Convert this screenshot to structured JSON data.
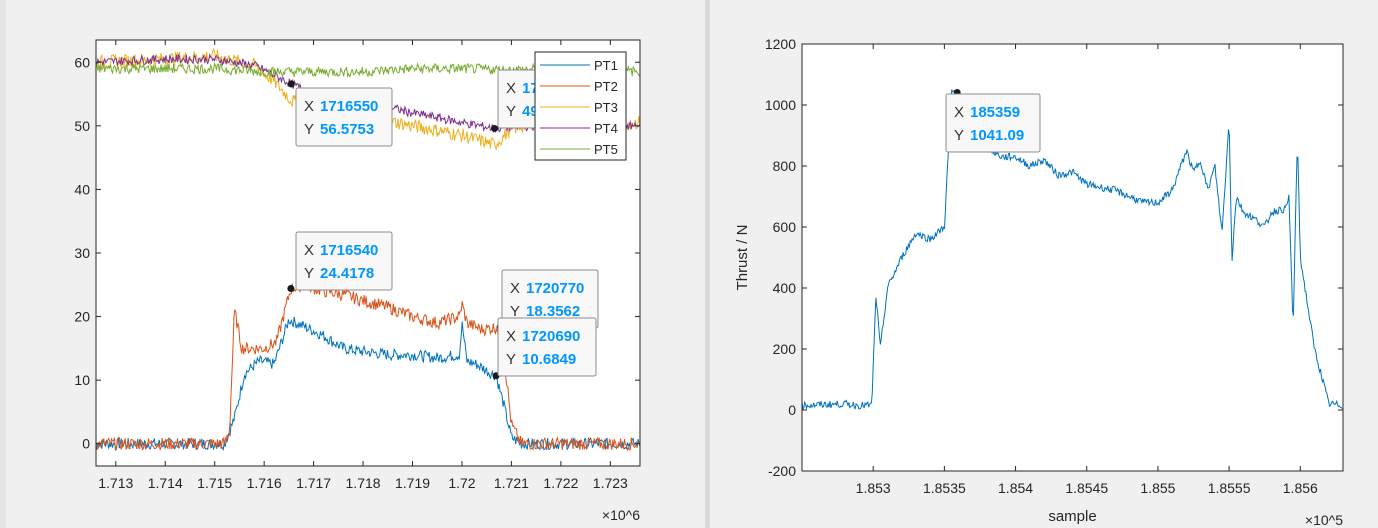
{
  "chart_data": [
    {
      "type": "line",
      "title": "",
      "xlabel": "",
      "ylabel": "",
      "x_exponent_label": "×10^6",
      "xlim": [
        1712.6,
        1723.6
      ],
      "ylim": [
        -3.5,
        63.5
      ],
      "xticks": [
        1713,
        1714,
        1715,
        1716,
        1717,
        1718,
        1719,
        1720,
        1721,
        1722,
        1723
      ],
      "xtick_labels": [
        "1.713",
        "1.714",
        "1.715",
        "1.716",
        "1.717",
        "1.718",
        "1.719",
        "1.72",
        "1.721",
        "1.722",
        "1.723"
      ],
      "yticks": [
        0,
        10,
        20,
        30,
        40,
        50,
        60
      ],
      "grid": false,
      "legend_position": "top-right",
      "series": [
        {
          "name": "PT1",
          "color": "#0072BD",
          "x": [
            1712.6,
            1715.0,
            1715.2,
            1715.4,
            1715.6,
            1715.9,
            1716.2,
            1716.5,
            1716.8,
            1717.2,
            1717.6,
            1718.0,
            1718.5,
            1719.0,
            1719.5,
            1719.95,
            1720.0,
            1720.1,
            1720.3,
            1720.6,
            1720.69,
            1720.85,
            1721.0,
            1721.2,
            1723.6
          ],
          "y": [
            0,
            0,
            0,
            4,
            11,
            13,
            12.5,
            19.5,
            18.5,
            17,
            15,
            14.5,
            14,
            14,
            13.5,
            14,
            19,
            13,
            12.5,
            11,
            10.7,
            6,
            1,
            0,
            0
          ]
        },
        {
          "name": "PT2",
          "color": "#D95319",
          "x": [
            1712.6,
            1715.0,
            1715.2,
            1715.3,
            1715.4,
            1715.55,
            1715.7,
            1716.0,
            1716.25,
            1716.54,
            1716.8,
            1717.2,
            1717.6,
            1718.0,
            1718.5,
            1719.0,
            1719.5,
            1719.95,
            1720.0,
            1720.1,
            1720.4,
            1720.77,
            1720.85,
            1721.0,
            1721.2,
            1723.6
          ],
          "y": [
            0,
            0,
            0,
            2,
            21,
            15,
            15,
            15,
            16,
            24.4,
            25,
            24,
            23.5,
            22.5,
            21.5,
            20,
            19,
            20,
            22,
            19,
            18,
            18.4,
            14,
            3,
            0,
            0
          ]
        },
        {
          "name": "PT3",
          "color": "#EDB120",
          "x": [
            1712.6,
            1714.0,
            1715.0,
            1715.8,
            1716.2,
            1716.55,
            1717.0,
            1717.5,
            1718.0,
            1718.5,
            1719.0,
            1719.5,
            1720.0,
            1720.66,
            1721.0,
            1721.5,
            1722.0,
            1722.5,
            1723.0,
            1723.6
          ],
          "y": [
            60,
            60.5,
            61,
            59.5,
            57,
            54,
            52.5,
            51.5,
            51,
            50.8,
            50,
            49.3,
            48.5,
            47,
            49.5,
            50.5,
            50.5,
            50.5,
            50.5,
            50.5
          ]
        },
        {
          "name": "PT4",
          "color": "#7E2F8E",
          "x": [
            1712.6,
            1714.0,
            1715.0,
            1715.8,
            1716.2,
            1716.55,
            1717.0,
            1717.5,
            1718.0,
            1718.5,
            1719.0,
            1719.5,
            1720.0,
            1720.66,
            1721.0,
            1721.5,
            1722.0,
            1722.5,
            1723.0,
            1723.6
          ],
          "y": [
            60,
            60.5,
            60.5,
            59.5,
            58,
            56.6,
            55,
            54,
            53.5,
            53,
            52,
            51.3,
            50.5,
            49.6,
            49.8,
            50,
            50,
            50,
            50,
            50
          ]
        },
        {
          "name": "PT5",
          "color": "#77AC30",
          "x": [
            1712.6,
            1714.0,
            1715.0,
            1716.0,
            1717.0,
            1718.0,
            1719.0,
            1720.0,
            1721.0,
            1722.0,
            1723.6
          ],
          "y": [
            59,
            59,
            59,
            58.5,
            58.5,
            58.5,
            59,
            59,
            58.8,
            59,
            58.5
          ]
        }
      ],
      "datatips": [
        {
          "x_label": "1716550",
          "y_label": "56.5753",
          "x": 1716.55,
          "y": 56.5753
        },
        {
          "x_label": "1720660",
          "y_label": "49.589",
          "x": 1720.66,
          "y": 49.589
        },
        {
          "x_label": "1716540",
          "y_label": "24.4178",
          "x": 1716.54,
          "y": 24.4178
        },
        {
          "x_label": "1720770",
          "y_label": "18.3562",
          "x": 1720.77,
          "y": 18.3562
        },
        {
          "x_label": "1720690",
          "y_label": "10.6849",
          "x": 1720.69,
          "y": 10.6849
        }
      ]
    },
    {
      "type": "line",
      "title": "",
      "xlabel": "sample",
      "ylabel": "Thrust / N",
      "x_exponent_label": "×10^5",
      "xlim": [
        1.8525,
        1.8563
      ],
      "ylim": [
        -200,
        1200
      ],
      "xticks": [
        1.853,
        1.8535,
        1.854,
        1.8545,
        1.855,
        1.8555,
        1.856
      ],
      "xtick_labels": [
        "1.853",
        "1.8535",
        "1.854",
        "1.8545",
        "1.855",
        "1.8555",
        "1.856"
      ],
      "yticks": [
        -200,
        0,
        200,
        400,
        600,
        800,
        1000,
        1200
      ],
      "grid": false,
      "legend_position": "none",
      "series": [
        {
          "name": "",
          "color": "#0072BD",
          "x": [
            1.8525,
            1.8528,
            1.8529,
            1.85299,
            1.85302,
            1.85305,
            1.8531,
            1.8532,
            1.8533,
            1.8534,
            1.8535,
            1.85355,
            1.8536,
            1.8537,
            1.8538,
            1.8539,
            1.854,
            1.8541,
            1.8542,
            1.8543,
            1.8544,
            1.8545,
            1.8546,
            1.8547,
            1.8548,
            1.8549,
            1.855,
            1.8551,
            1.8552,
            1.85525,
            1.8553,
            1.85535,
            1.8554,
            1.85545,
            1.8555,
            1.85552,
            1.85555,
            1.8556,
            1.8557,
            1.85575,
            1.8558,
            1.8559,
            1.85592,
            1.85595,
            1.85598,
            1.856,
            1.8561,
            1.8562,
            1.8563
          ],
          "y": [
            15,
            20,
            15,
            15,
            380,
            200,
            400,
            500,
            580,
            560,
            600,
            1040,
            1041,
            890,
            860,
            830,
            830,
            800,
            820,
            770,
            780,
            740,
            730,
            720,
            700,
            680,
            680,
            720,
            850,
            780,
            820,
            720,
            800,
            580,
            950,
            490,
            700,
            650,
            620,
            600,
            650,
            660,
            700,
            270,
            900,
            500,
            200,
            20,
            15
          ]
        }
      ],
      "datatips": [
        {
          "x_label": "185359",
          "y_label": "1041.09",
          "x": 1.85359,
          "y": 1041.09
        }
      ]
    }
  ],
  "legend": {
    "entries": [
      "PT1",
      "PT2",
      "PT3",
      "PT4",
      "PT5"
    ]
  },
  "datatip_prefix": {
    "x": "X",
    "y": "Y"
  },
  "colors": {
    "axes_bg": "#ffffff",
    "window_bg": "#f0f0f0",
    "tip_value": "#0097ff",
    "tip_border": "#8c8c8c",
    "tip_bg": "#f8f8f8"
  }
}
